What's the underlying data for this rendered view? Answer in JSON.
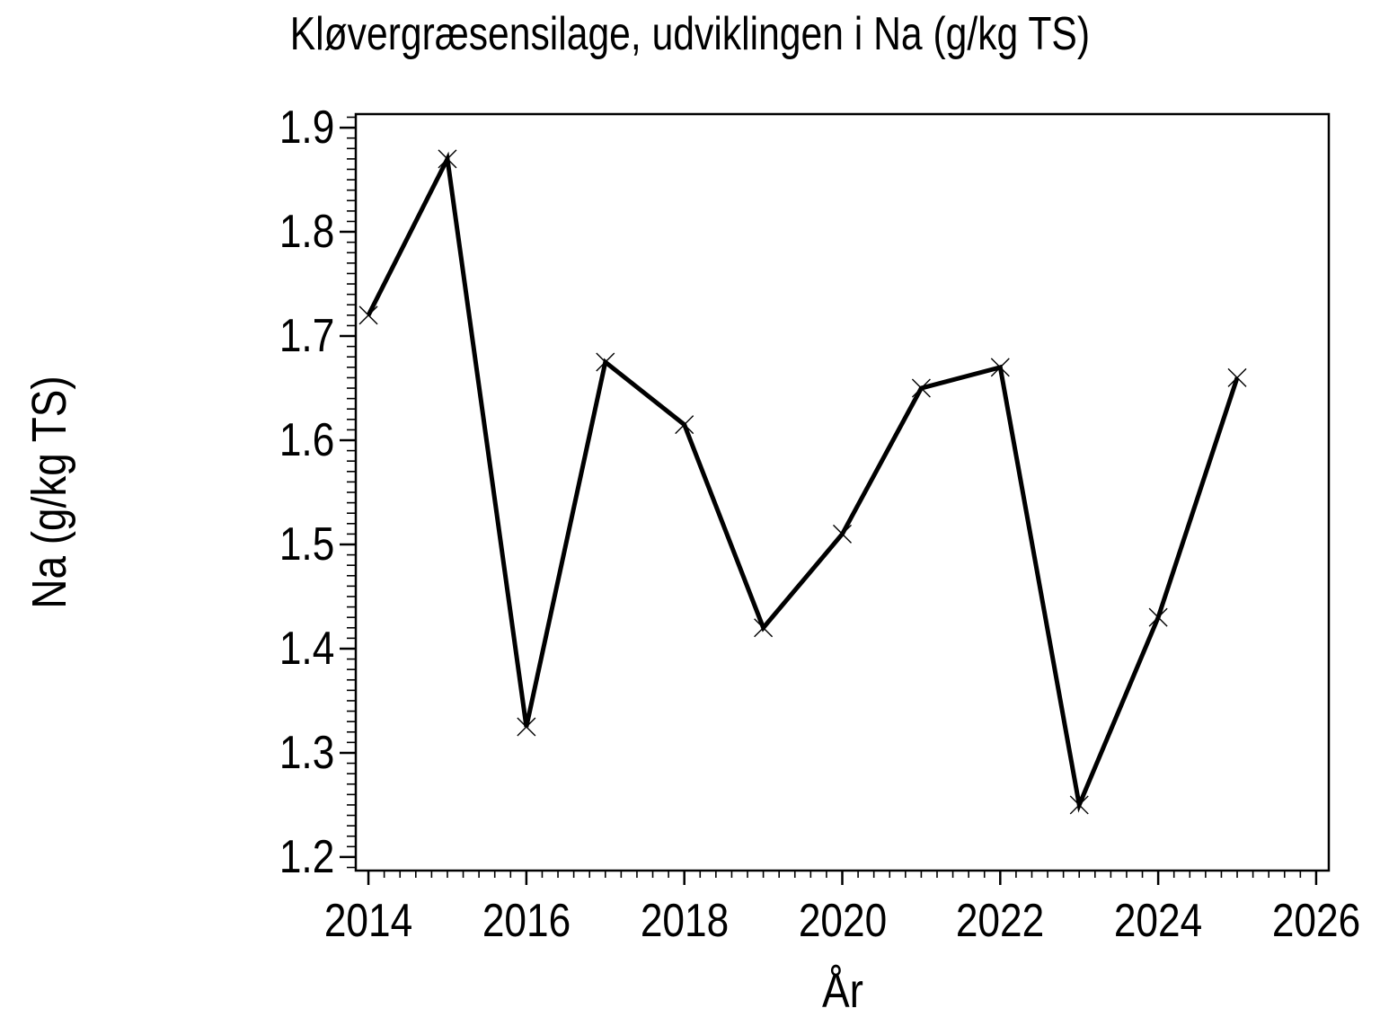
{
  "chart_data": {
    "type": "line",
    "title": "Kløvergræsensilage, udviklingen i Na (g/kg TS)",
    "xlabel": "År",
    "ylabel": "Na (g/kg TS)",
    "x": [
      2014,
      2015,
      2016,
      2017,
      2018,
      2019,
      2020,
      2021,
      2022,
      2023,
      2024,
      2025
    ],
    "series": [
      {
        "name": "Na (g/kg TS)",
        "values": [
          1.72,
          1.87,
          1.325,
          1.675,
          1.615,
          1.42,
          1.51,
          1.65,
          1.67,
          1.25,
          1.43,
          1.66
        ]
      }
    ],
    "xlim": [
      2013.84,
      2026.16
    ],
    "ylim": [
      1.187,
      1.913
    ],
    "x_major_ticks": [
      2014,
      2016,
      2018,
      2020,
      2022,
      2024,
      2026
    ],
    "x_tick_labels": [
      "2014",
      "2016",
      "2018",
      "2020",
      "2022",
      "2024",
      "2026"
    ],
    "x_minor_step": 0.2,
    "y_major_ticks": [
      1.2,
      1.3,
      1.4,
      1.5,
      1.6,
      1.7,
      1.8,
      1.9
    ],
    "y_tick_labels": [
      "1.2",
      "1.3",
      "1.4",
      "1.5",
      "1.6",
      "1.7",
      "1.8",
      "1.9"
    ],
    "y_minor_step": 0.01,
    "marker": "x",
    "line_color": "#000000",
    "axis_color": "#000000",
    "background": "#ffffff",
    "grid": false,
    "legend": "none"
  }
}
